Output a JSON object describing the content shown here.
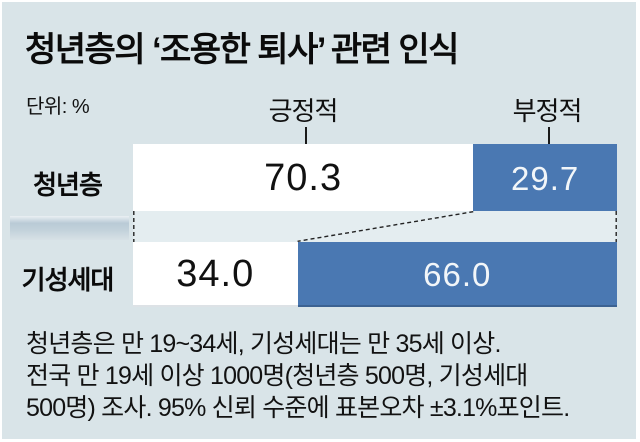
{
  "title": "청년층의 ‘조용한 퇴사’ 관련 인식",
  "unit_label": "단위: %",
  "legend": {
    "positive": "긍정적",
    "negative": "부정적"
  },
  "rows": [
    {
      "label": "청년층",
      "positive_display": "70.3",
      "negative_display": "29.7"
    },
    {
      "label": "기성세대",
      "positive_display": "34.0",
      "negative_display": "66.0"
    }
  ],
  "footnote_lines": [
    "청년층은 만 19~34세, 기성세대는 만 35세 이상.",
    "전국 만 19세 이상 1000명(청년층 500명, 기성세대",
    "500명) 조사. 95% 신뢰 수준에 표본오차 ±3.1%포인트."
  ],
  "colors": {
    "panel_background": "#d9e4e8",
    "positive_segment": "#ffffff",
    "negative_segment": "#4a78b2",
    "text": "#0b0b0b"
  },
  "chart_data": {
    "type": "bar",
    "orientation": "horizontal-stacked",
    "title": "청년층의 ‘조용한 퇴사’ 관련 인식",
    "unit": "%",
    "categories": [
      "청년층",
      "기성세대"
    ],
    "series": [
      {
        "name": "긍정적",
        "values": [
          70.3,
          34.0
        ],
        "color": "#ffffff"
      },
      {
        "name": "부정적",
        "values": [
          29.7,
          66.0
        ],
        "color": "#4a78b2"
      }
    ],
    "xlim": [
      0,
      100
    ],
    "grid": false,
    "legend_position": "top",
    "annotations": "dashed connector lines link the split points of the two bars"
  }
}
